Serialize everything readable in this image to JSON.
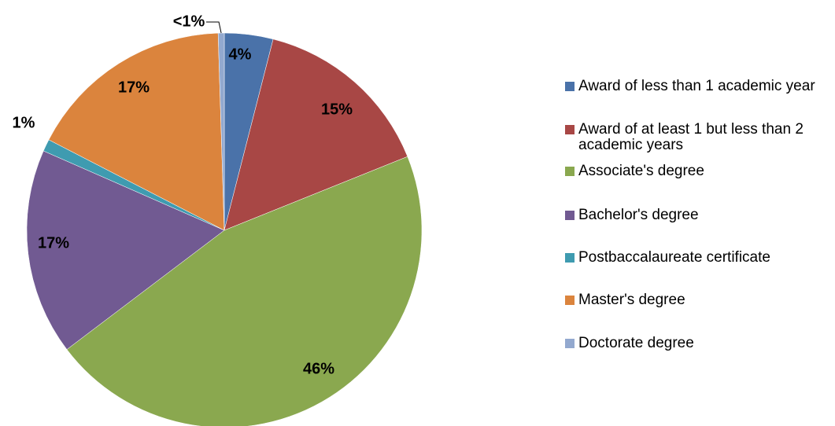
{
  "chart_data": {
    "type": "pie",
    "categories": [
      "Award of less than 1 academic year",
      "Award of at least 1 but less than 2 academic years",
      "Associate's degree",
      "Bachelor's degree",
      "Postbaccalaureate certificate",
      "Master's degree",
      "Doctorate degree"
    ],
    "values": [
      4,
      15,
      46,
      17,
      1,
      17,
      0.5
    ],
    "value_labels": [
      "4%",
      "15%",
      "46%",
      "17%",
      "1%",
      "17%",
      "<1%"
    ],
    "colors": [
      "#4a72a9",
      "#a84745",
      "#8aa84f",
      "#715a92",
      "#3f9bb0",
      "#db843d",
      "#93a9cf"
    ],
    "legend": "right"
  }
}
